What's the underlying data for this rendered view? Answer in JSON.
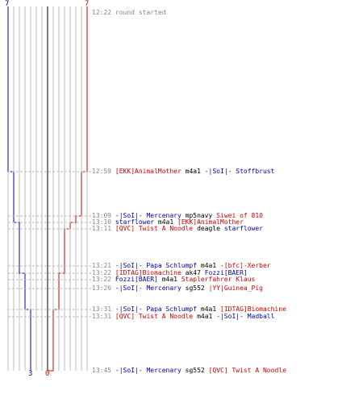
{
  "colors": {
    "team_blue": "#0000aa",
    "team_red": "#cc0000",
    "grid": "#bbbbbb",
    "center_line": "#555555",
    "connector": "#bbbbbb",
    "time": "#888888",
    "weapon": "#000000"
  },
  "counts": {
    "blue_start": "7",
    "red_start": "7",
    "blue_end": "3",
    "red_end": "0"
  },
  "chart_data": {
    "type": "line",
    "series": [
      {
        "team": "blue",
        "start": 7,
        "values": [
          7,
          6,
          6,
          5,
          5,
          5,
          4,
          4,
          4,
          3,
          3,
          3
        ]
      },
      {
        "team": "red",
        "start": 7,
        "values": [
          7,
          6,
          5,
          4,
          3,
          3,
          2,
          2,
          2,
          1,
          1,
          0
        ]
      }
    ]
  },
  "events": [
    {
      "time": "12:22",
      "info": "round started"
    },
    {
      "time": "12:59",
      "killer": "[EKK]AnimalMother",
      "killer_team": "red",
      "weapon": "m4a1",
      "victim": "-|SoI|- Stoffbrust",
      "victim_team": "blue"
    },
    {
      "time": "13:09",
      "killer": "-|SoI|- Mercenary",
      "killer_team": "blue",
      "weapon": "mp5navy",
      "victim": "Siwei of 810",
      "victim_team": "red"
    },
    {
      "time": "13:10",
      "killer": "starflower",
      "killer_team": "blue",
      "weapon": "m4a1",
      "victim": "[EKK]AnimalMother",
      "victim_team": "red"
    },
    {
      "time": "13:11",
      "killer": "[QVC] Twist A Noodle",
      "killer_team": "red",
      "weapon": "deagle",
      "victim": "starflower",
      "victim_team": "blue"
    },
    {
      "time": "13:21",
      "killer": "-|SoI|- Papa Schlumpf",
      "killer_team": "blue",
      "weapon": "m4a1",
      "victim": "-[bfc]-Xerber",
      "victim_team": "red"
    },
    {
      "time": "13:22",
      "killer": "[IDTAG]Biomachine",
      "killer_team": "red",
      "weapon": "ak47",
      "victim": "Fozzi[BAER]",
      "victim_team": "blue"
    },
    {
      "time": "13:22",
      "killer": "Fozzi[BAER]",
      "killer_team": "blue",
      "weapon": "m4a1",
      "victim": "Staplerfahrer Klaus",
      "victim_team": "red"
    },
    {
      "time": "13:26",
      "killer": "-|SoI|- Mercenary",
      "killer_team": "blue",
      "weapon": "sg552",
      "victim": "|YY|Guinea_Pig",
      "victim_team": "red"
    },
    {
      "time": "13:31",
      "killer": "-|SoI|- Papa Schlumpf",
      "killer_team": "blue",
      "weapon": "m4a1",
      "victim": "[IDTAG]Biomachine",
      "victim_team": "red"
    },
    {
      "time": "13:31",
      "killer": "[QVC] Twist A Noodle",
      "killer_team": "red",
      "weapon": "m4a1",
      "victim": "-|SoI|- Madball",
      "victim_team": "blue"
    },
    {
      "time": "13:45",
      "killer": "-|SoI|- Mercenary",
      "killer_team": "blue",
      "weapon": "sg552",
      "victim": "[QVC] Twist A Noodle",
      "victim_team": "red"
    }
  ]
}
